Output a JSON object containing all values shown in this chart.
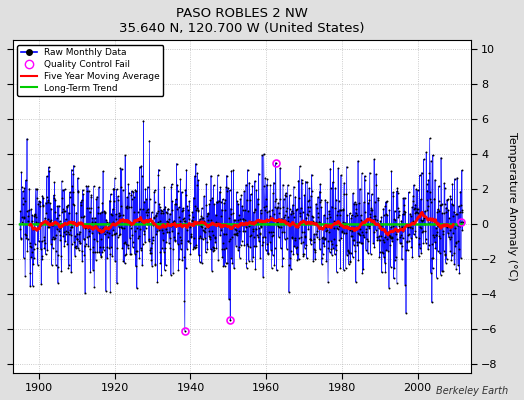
{
  "title": "PASO ROBLES 2 NW",
  "subtitle": "35.640 N, 120.700 W (United States)",
  "ylabel": "Temperature Anomaly (°C)",
  "watermark": "Berkeley Earth",
  "xlim": [
    1893,
    2014
  ],
  "ylim": [
    -8.5,
    10.5
  ],
  "yticks": [
    -8,
    -6,
    -4,
    -2,
    0,
    2,
    4,
    6,
    8,
    10
  ],
  "xticks": [
    1900,
    1920,
    1940,
    1960,
    1980,
    2000
  ],
  "raw_line_color": "#0000FF",
  "raw_dot_color": "#000000",
  "moving_avg_color": "#FF0000",
  "trend_color": "#00CC00",
  "qc_fail_color": "#FF00FF",
  "background_color": "#E0E0E0",
  "plot_bg_color": "#FFFFFF",
  "seed": 12345,
  "n_years": 117,
  "start_year": 1895,
  "qc_fail_years": [
    1938.5,
    1950.5,
    1962.5,
    2011.5
  ],
  "qc_fail_values": [
    -6.1,
    -5.5,
    3.5,
    0.1
  ]
}
